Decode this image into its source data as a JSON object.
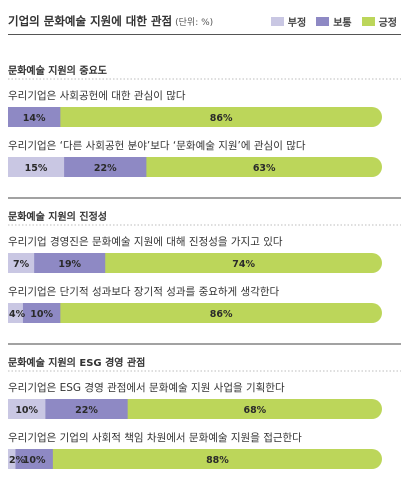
{
  "header": {
    "title": "기업의 문화예술 지원에 대한 관점",
    "unit": "(단위: %)"
  },
  "legend": [
    {
      "name": "부정",
      "color": "#c9c7e3"
    },
    {
      "name": "보통",
      "color": "#8e89c4"
    },
    {
      "name": "긍정",
      "color": "#bcd65a"
    }
  ],
  "chart_data": {
    "type": "bar",
    "stacked": true,
    "orientation": "horizontal",
    "unit": "%",
    "series": [
      "부정",
      "보통",
      "긍정"
    ],
    "sections": [
      {
        "title": "문화예술 지원의 중요도",
        "items": [
          {
            "label": "우리기업은 사회공헌에 대한 관심이 많다",
            "values": [
              0,
              14,
              86
            ],
            "value_labels": [
              "",
              "14%",
              "86%"
            ]
          },
          {
            "label": "우리기업은 ‘다른 사회공헌 분야’보다 ‘문화예술 지원’에 관심이 많다",
            "values": [
              15,
              22,
              63
            ],
            "value_labels": [
              "15%",
              "22%",
              "63%"
            ]
          }
        ]
      },
      {
        "title": "문화예술 지원의 진정성",
        "items": [
          {
            "label": "우리기업 경영진은 문화예술 지원에 대해 진정성을 가지고 있다",
            "values": [
              7,
              19,
              74
            ],
            "value_labels": [
              "7%",
              "19%",
              "74%"
            ]
          },
          {
            "label": "우리기업은 단기적 성과보다 장기적 성과를 중요하게 생각한다",
            "values": [
              4,
              10,
              86
            ],
            "value_labels": [
              "4%",
              "10%",
              "86%"
            ]
          }
        ]
      },
      {
        "title": "문화예술 지원의 ESG 경영 관점",
        "items": [
          {
            "label": "우리기업은 ESG 경영 관점에서 문화예술 지원 사업을 기획한다",
            "values": [
              10,
              22,
              68
            ],
            "value_labels": [
              "10%",
              "22%",
              "68%"
            ]
          },
          {
            "label": "우리기업은 기업의 사회적 책임 차원에서 문화예술 지원을 접근한다",
            "values": [
              2,
              10,
              88
            ],
            "value_labels": [
              "2%",
              "10%",
              "88%"
            ]
          }
        ]
      }
    ]
  }
}
